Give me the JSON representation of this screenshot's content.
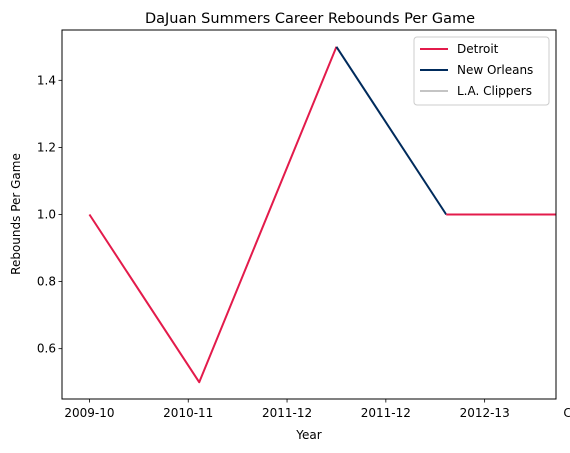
{
  "chart_data": {
    "type": "line",
    "title": "DaJuan Summers Career Rebounds Per Game",
    "xlabel": "Year",
    "ylabel": "Rebounds Per Game",
    "categories": [
      "2009-10",
      "2010-11",
      "2011-12",
      "2011-12",
      "2012-13",
      "Career"
    ],
    "ylim": [
      0.45,
      1.55
    ],
    "yticks": [
      0.6,
      0.8,
      1.0,
      1.2,
      1.4
    ],
    "grid": false,
    "legend_position": "top-right",
    "series": [
      {
        "name": "Detroit",
        "color": "#E31B4B",
        "points": [
          {
            "x": "2009-10",
            "y": 1.0
          },
          {
            "x": "2010-11",
            "y": 0.5
          },
          {
            "x": "2011-12",
            "y": 1.5
          }
        ]
      },
      {
        "name": "New Orleans",
        "color": "#002B5C",
        "points": [
          {
            "x": "2011-12",
            "y": 1.5
          },
          {
            "x": "2012-13",
            "y": 1.0
          }
        ]
      },
      {
        "name": "L.A. Clippers",
        "color": "#C4C4C4",
        "points": []
      },
      {
        "name": "",
        "color": "#E31B4B",
        "points": [
          {
            "x": "2012-13",
            "y": 1.0
          },
          {
            "x": "Career",
            "y": 1.0
          }
        ]
      }
    ],
    "x_positions": [
      0,
      1,
      2,
      3,
      4,
      5
    ],
    "series_x_indices": [
      [
        0,
        1,
        2.25
      ],
      [
        2.25,
        3.25
      ],
      [],
      [
        3.25,
        4.25
      ]
    ]
  }
}
